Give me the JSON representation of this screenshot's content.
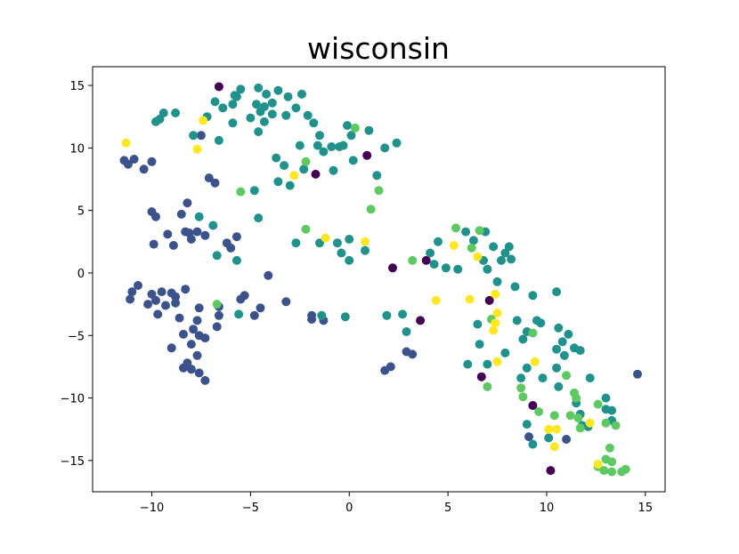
{
  "chart_data": {
    "type": "scatter",
    "title": "wisconsin",
    "xlabel": "",
    "ylabel": "",
    "xlim": [
      -13,
      16
    ],
    "ylim": [
      -17.5,
      16.5
    ],
    "x_ticks": [
      -10,
      -5,
      0,
      5,
      10,
      15
    ],
    "y_ticks": [
      -15,
      -10,
      -5,
      0,
      5,
      10,
      15
    ],
    "x_tick_labels": [
      "−10",
      "−5",
      "0",
      "5",
      "10",
      "15"
    ],
    "y_tick_labels": [
      "−15",
      "−10",
      "−5",
      "0",
      "5",
      "10",
      "15"
    ],
    "grid": false,
    "legend": "none",
    "colors": {
      "c0": "#440154",
      "c1": "#3b528b",
      "c2": "#21918c",
      "c3": "#5ec962",
      "c4": "#fde725"
    },
    "series": [
      {
        "color_key": "c0",
        "points": [
          [
            -6.6,
            14.9
          ],
          [
            -1.7,
            7.9
          ],
          [
            0.9,
            9.4
          ],
          [
            2.2,
            0.4
          ],
          [
            3.9,
            1.0
          ],
          [
            3.6,
            -3.8
          ],
          [
            6.7,
            -8.3
          ],
          [
            7.1,
            -2.2
          ],
          [
            9.3,
            -10.6
          ],
          [
            10.2,
            -15.8
          ]
        ]
      },
      {
        "color_key": "c1",
        "points": [
          [
            -11.4,
            9.0
          ],
          [
            -11.2,
            8.7
          ],
          [
            -10.9,
            9.1
          ],
          [
            -10.4,
            8.3
          ],
          [
            -10.0,
            8.9
          ],
          [
            -10.0,
            4.9
          ],
          [
            -9.8,
            4.5
          ],
          [
            -9.9,
            2.3
          ],
          [
            -9.2,
            3.1
          ],
          [
            -8.9,
            2.2
          ],
          [
            -8.5,
            4.7
          ],
          [
            -8.3,
            3.3
          ],
          [
            -8.1,
            3.2
          ],
          [
            -8.0,
            2.7
          ],
          [
            -8.2,
            5.6
          ],
          [
            -7.7,
            3.3
          ],
          [
            -7.3,
            3.0
          ],
          [
            -7.1,
            7.6
          ],
          [
            -6.8,
            7.2
          ],
          [
            -7.5,
            11.0
          ],
          [
            -6.2,
            2.4
          ],
          [
            -6.0,
            2.0
          ],
          [
            -5.7,
            2.9
          ],
          [
            -11.1,
            -2.1
          ],
          [
            -11.0,
            -1.5
          ],
          [
            -10.7,
            -1.0
          ],
          [
            -10.2,
            -2.5
          ],
          [
            -10.0,
            -1.7
          ],
          [
            -9.8,
            -2.2
          ],
          [
            -9.7,
            -3.3
          ],
          [
            -9.5,
            -1.5
          ],
          [
            -9.3,
            -2.6
          ],
          [
            -9.0,
            -1.6
          ],
          [
            -8.8,
            -1.9
          ],
          [
            -8.8,
            -2.4
          ],
          [
            -8.6,
            -3.6
          ],
          [
            -8.3,
            -1.3
          ],
          [
            -8.4,
            -4.9
          ],
          [
            -8.0,
            -5.7
          ],
          [
            -7.7,
            -6.6
          ],
          [
            -7.9,
            -4.5
          ],
          [
            -7.6,
            -5.0
          ],
          [
            -7.7,
            -3.8
          ],
          [
            -7.6,
            -2.8
          ],
          [
            -7.3,
            -5.2
          ],
          [
            -8.2,
            -7.2
          ],
          [
            -8.4,
            -7.6
          ],
          [
            -8.0,
            -7.7
          ],
          [
            -7.6,
            -8.0
          ],
          [
            -7.3,
            -8.6
          ],
          [
            -6.7,
            -4.3
          ],
          [
            -6.6,
            -3.4
          ],
          [
            -6.6,
            -2.7
          ],
          [
            -9.0,
            -6.0
          ],
          [
            -5.5,
            -2.1
          ],
          [
            -5.3,
            -1.8
          ],
          [
            -4.8,
            -3.4
          ],
          [
            -4.5,
            -2.8
          ],
          [
            -4.1,
            -0.2
          ],
          [
            -3.2,
            -2.3
          ],
          [
            -1.9,
            -3.7
          ],
          [
            -1.9,
            -3.4
          ],
          [
            -1.3,
            -3.8
          ],
          [
            2.1,
            -7.5
          ],
          [
            1.8,
            -7.8
          ],
          [
            2.9,
            -6.3
          ],
          [
            3.2,
            -6.5
          ],
          [
            9.1,
            -13.1
          ],
          [
            11.0,
            -13.3
          ],
          [
            14.6,
            -8.1
          ]
        ]
      },
      {
        "color_key": "c2",
        "points": [
          [
            -9.8,
            12.1
          ],
          [
            -9.6,
            12.3
          ],
          [
            -9.4,
            12.8
          ],
          [
            -8.8,
            12.8
          ],
          [
            -7.9,
            11.0
          ],
          [
            -7.2,
            12.5
          ],
          [
            -6.8,
            13.7
          ],
          [
            -6.4,
            13.2
          ],
          [
            -6.6,
            10.6
          ],
          [
            -5.9,
            12.0
          ],
          [
            -5.9,
            13.5
          ],
          [
            -5.8,
            14.2
          ],
          [
            -5.7,
            14.1
          ],
          [
            -5.5,
            14.7
          ],
          [
            -5.0,
            12.4
          ],
          [
            -4.7,
            13.5
          ],
          [
            -4.6,
            14.8
          ],
          [
            -4.5,
            12.9
          ],
          [
            -4.6,
            11.3
          ],
          [
            -4.3,
            12.1
          ],
          [
            -4.3,
            13.3
          ],
          [
            -4.2,
            14.3
          ],
          [
            -3.9,
            12.7
          ],
          [
            -3.9,
            13.6
          ],
          [
            -3.6,
            14.6
          ],
          [
            -3.1,
            14.1
          ],
          [
            -3.2,
            12.6
          ],
          [
            -2.7,
            13.2
          ],
          [
            -2.4,
            14.3
          ],
          [
            -2.1,
            12.6
          ],
          [
            -1.5,
            11.0
          ],
          [
            -1.8,
            12.0
          ],
          [
            -2.5,
            10.2
          ],
          [
            -1.6,
            10.2
          ],
          [
            -1.3,
            9.7
          ],
          [
            -0.9,
            10.1
          ],
          [
            -0.5,
            10.1
          ],
          [
            -0.1,
            11.8
          ],
          [
            -0.3,
            10.2
          ],
          [
            0.1,
            11.0
          ],
          [
            0.2,
            9.0
          ],
          [
            -0.8,
            8.2
          ],
          [
            -2.3,
            8.3
          ],
          [
            -3.7,
            9.2
          ],
          [
            -3.0,
            7.0
          ],
          [
            -3.3,
            8.6
          ],
          [
            -3.6,
            7.3
          ],
          [
            1.4,
            7.8
          ],
          [
            1.0,
            11.4
          ],
          [
            1.8,
            10.0
          ],
          [
            2.4,
            10.4
          ],
          [
            -7.6,
            4.5
          ],
          [
            -6.9,
            3.8
          ],
          [
            -6.7,
            1.4
          ],
          [
            -4.6,
            4.4
          ],
          [
            -4.8,
            6.6
          ],
          [
            -2.7,
            2.4
          ],
          [
            -1.5,
            2.4
          ],
          [
            -0.6,
            2.4
          ],
          [
            0.0,
            2.7
          ],
          [
            -0.4,
            1.6
          ],
          [
            0.0,
            1.0
          ],
          [
            0.8,
            1.8
          ],
          [
            -5.7,
            1.0
          ],
          [
            -5.6,
            -3.3
          ],
          [
            -1.4,
            -3.4
          ],
          [
            -0.2,
            -3.5
          ],
          [
            1.9,
            -3.4
          ],
          [
            2.7,
            -3.3
          ],
          [
            2.9,
            -4.7
          ],
          [
            4.1,
            1.6
          ],
          [
            4.3,
            0.7
          ],
          [
            4.5,
            2.5
          ],
          [
            4.9,
            0.4
          ],
          [
            5.5,
            0.3
          ],
          [
            5.9,
            3.3
          ],
          [
            6.3,
            2.6
          ],
          [
            6.9,
            3.3
          ],
          [
            6.8,
            1.0
          ],
          [
            7.0,
            0.3
          ],
          [
            7.3,
            2.1
          ],
          [
            7.5,
            -0.7
          ],
          [
            7.7,
            1.0
          ],
          [
            7.9,
            1.6
          ],
          [
            8.1,
            2.1
          ],
          [
            8.2,
            1.1
          ],
          [
            8.4,
            -1.1
          ],
          [
            8.5,
            -3.8
          ],
          [
            8.8,
            -5.3
          ],
          [
            9.3,
            -1.8
          ],
          [
            9.5,
            -3.8
          ],
          [
            9.0,
            -4.7
          ],
          [
            9.7,
            -4.0
          ],
          [
            10.5,
            -1.5
          ],
          [
            10.6,
            -4.4
          ],
          [
            10.5,
            -6.1
          ],
          [
            10.8,
            -5.5
          ],
          [
            11.1,
            -4.9
          ],
          [
            11.4,
            -6.0
          ],
          [
            10.9,
            -6.6
          ],
          [
            10.5,
            -7.6
          ],
          [
            11.7,
            -6.2
          ],
          [
            10.6,
            -9.1
          ],
          [
            11.5,
            -10.4
          ],
          [
            11.7,
            -11.3
          ],
          [
            11.8,
            -12.2
          ],
          [
            12.1,
            -12.3
          ],
          [
            12.2,
            -8.4
          ],
          [
            13.0,
            -10.0
          ],
          [
            13.0,
            -10.9
          ],
          [
            13.3,
            -11.0
          ],
          [
            13.3,
            -11.8
          ],
          [
            6.6,
            -5.7
          ],
          [
            6.5,
            -4.1
          ],
          [
            6.0,
            -7.3
          ],
          [
            7.0,
            -7.3
          ],
          [
            7.9,
            -6.4
          ],
          [
            8.7,
            -8.4
          ],
          [
            9.0,
            -7.6
          ],
          [
            9.8,
            -8.4
          ],
          [
            9.0,
            -12.1
          ],
          [
            9.3,
            -13.7
          ],
          [
            10.1,
            -13.2
          ]
        ]
      },
      {
        "color_key": "c3",
        "points": [
          [
            -5.5,
            6.5
          ],
          [
            -2.2,
            8.9
          ],
          [
            0.3,
            11.6
          ],
          [
            1.1,
            5.1
          ],
          [
            1.5,
            6.6
          ],
          [
            -2.2,
            3.5
          ],
          [
            -6.7,
            -2.5
          ],
          [
            3.2,
            1.0
          ],
          [
            5.4,
            3.6
          ],
          [
            6.2,
            2.0
          ],
          [
            6.6,
            3.4
          ],
          [
            7.0,
            -9.1
          ],
          [
            7.2,
            -3.7
          ],
          [
            8.7,
            -9.2
          ],
          [
            8.8,
            -9.9
          ],
          [
            9.3,
            -4.8
          ],
          [
            9.6,
            -11.1
          ],
          [
            10.4,
            -11.4
          ],
          [
            11.2,
            -11.4
          ],
          [
            11.0,
            -8.2
          ],
          [
            11.4,
            -9.6
          ],
          [
            11.5,
            -10.0
          ],
          [
            11.6,
            -11.6
          ],
          [
            11.7,
            -12.4
          ],
          [
            12.6,
            -10.5
          ],
          [
            13.0,
            -12.0
          ],
          [
            13.5,
            -12.2
          ],
          [
            13.2,
            -14.0
          ],
          [
            12.9,
            -15.8
          ],
          [
            13.0,
            -14.9
          ],
          [
            13.3,
            -15.1
          ],
          [
            13.3,
            -15.9
          ],
          [
            13.8,
            -15.9
          ],
          [
            14.0,
            -15.7
          ],
          [
            12.6,
            -15.5
          ]
        ]
      },
      {
        "color_key": "c4",
        "points": [
          [
            -11.3,
            10.4
          ],
          [
            -7.4,
            12.2
          ],
          [
            -7.7,
            9.9
          ],
          [
            -2.8,
            7.8
          ],
          [
            -1.2,
            2.8
          ],
          [
            0.8,
            2.5
          ],
          [
            4.4,
            -2.2
          ],
          [
            5.3,
            2.2
          ],
          [
            6.1,
            -2.1
          ],
          [
            6.5,
            1.3
          ],
          [
            7.4,
            -1.7
          ],
          [
            7.5,
            -3.2
          ],
          [
            7.4,
            -4.0
          ],
          [
            7.3,
            -4.6
          ],
          [
            7.5,
            -7.1
          ],
          [
            9.4,
            -7.1
          ],
          [
            10.1,
            -12.5
          ],
          [
            10.5,
            -12.5
          ],
          [
            10.4,
            -13.9
          ],
          [
            12.2,
            -12.0
          ],
          [
            12.6,
            -15.3
          ]
        ]
      }
    ]
  }
}
